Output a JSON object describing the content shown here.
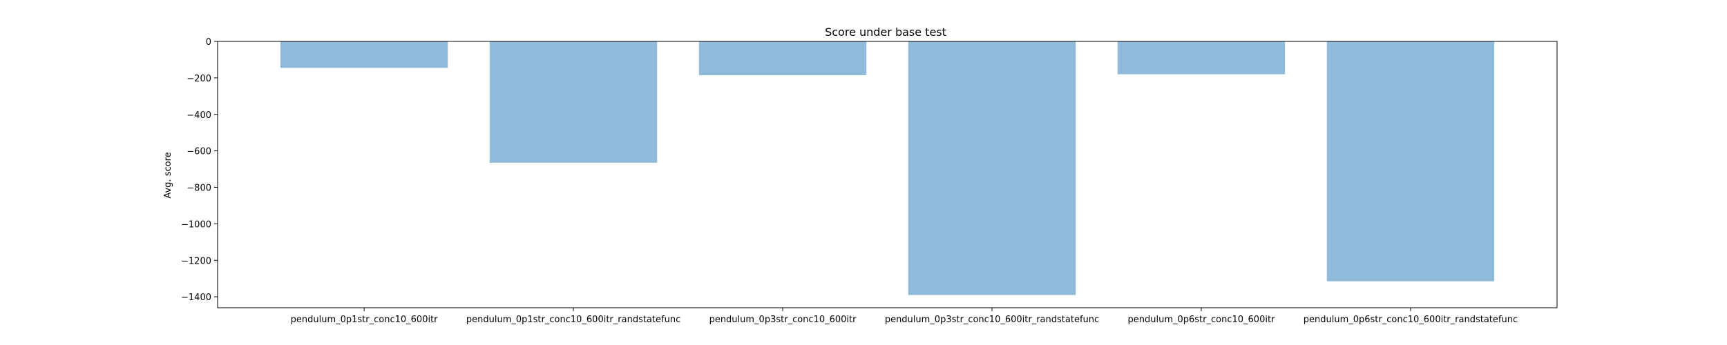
{
  "chart_data": {
    "type": "bar",
    "title": "Score under base test",
    "xlabel": "",
    "ylabel": "Avg. score",
    "categories": [
      "pendulum_0p1str_conc10_600itr",
      "pendulum_0p1str_conc10_600itr_randstatefunc",
      "pendulum_0p3str_conc10_600itr",
      "pendulum_0p3str_conc10_600itr_randstatefunc",
      "pendulum_0p6str_conc10_600itr",
      "pendulum_0p6str_conc10_600itr_randstatefunc"
    ],
    "values": [
      -145,
      -665,
      -185,
      -1390,
      -180,
      -1315
    ],
    "ylim": [
      -1460,
      0
    ],
    "yticks": [
      0,
      -200,
      -400,
      -600,
      -800,
      -1000,
      -1200,
      -1400
    ],
    "ytick_labels": [
      "0",
      "−200",
      "−400",
      "−600",
      "−800",
      "−1000",
      "−1200",
      "−1400"
    ],
    "grid": false,
    "bar_color": "#8fbada"
  }
}
